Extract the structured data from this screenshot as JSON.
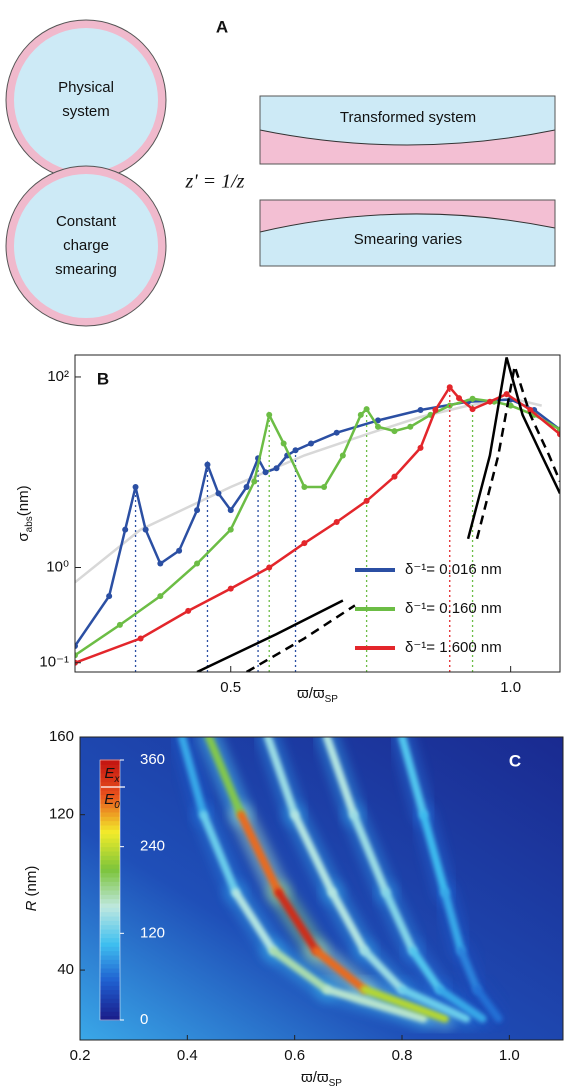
{
  "diagram": {
    "label": "A",
    "circles": [
      "Physical system",
      "Constant charge smearing"
    ],
    "equation": "z' = 1/z",
    "slabs": [
      "Transformed system",
      "Smearing varies"
    ]
  },
  "chart_data": [
    {
      "type": "line",
      "panel_label": "B",
      "ylabel": "σ",
      "ylabel_sub": "abs",
      "ylabel_unit": "(nm)",
      "xlabel": "ϖ/ϖ",
      "xlabel_sub": "SP",
      "xlog": true,
      "ylog": true,
      "xlim": [
        0.34,
        1.13
      ],
      "ylim": [
        0.08,
        170
      ],
      "xticks": [
        0.5,
        {
          "value": 1,
          "label": "1.0"
        }
      ],
      "yticks": [
        {
          "value": 0.1,
          "label": "10⁻¹"
        },
        {
          "value": 1,
          "label": "10⁰"
        },
        {
          "value": 100,
          "label": "10²"
        }
      ],
      "legend": "lower right",
      "series": [
        {
          "color": "#d8d8d8",
          "x": [
            0.34,
            0.4,
            0.5,
            0.6,
            0.7,
            0.8,
            0.9,
            1.0,
            1.08
          ],
          "values": [
            0.7,
            2.5,
            7,
            15,
            25,
            38,
            50,
            60,
            50
          ]
        },
        {
          "name": "δ⁻¹= 0.016 nm",
          "color": "#2b4fa3",
          "markers": true,
          "x": [
            0.34,
            0.37,
            0.385,
            0.395,
            0.405,
            0.42,
            0.44,
            0.46,
            0.472,
            0.485,
            0.5,
            0.52,
            0.535,
            0.545,
            0.56,
            0.575,
            0.587,
            0.61,
            0.65,
            0.72,
            0.8,
            0.9,
            1.0,
            1.06,
            1.13
          ],
          "values": [
            0.15,
            0.5,
            2.5,
            7,
            2.5,
            1.1,
            1.5,
            4,
            12,
            6,
            4,
            7,
            14,
            10,
            11,
            15,
            17,
            20,
            26,
            35,
            45,
            55,
            58,
            45,
            28
          ],
          "peaks": [
            0.395,
            0.472,
            0.535,
            0.587
          ]
        },
        {
          "name": "δ⁻¹= 0.160 nm",
          "color": "#6cbd45",
          "markers": true,
          "x": [
            0.34,
            0.38,
            0.42,
            0.46,
            0.5,
            0.53,
            0.55,
            0.57,
            0.6,
            0.63,
            0.66,
            0.69,
            0.7,
            0.72,
            0.75,
            0.78,
            0.82,
            0.86,
            0.91,
            0.96,
            1.0,
            1.06,
            1.13
          ],
          "values": [
            0.12,
            0.25,
            0.5,
            1.1,
            2.5,
            8,
            40,
            20,
            7,
            7,
            15,
            40,
            46,
            30,
            27,
            30,
            40,
            50,
            59,
            55,
            50,
            40,
            28
          ],
          "peaks": [
            0.55,
            0.7,
            0.91
          ]
        },
        {
          "name": "δ⁻¹= 1.600 nm",
          "color": "#e3262b",
          "markers": true,
          "x": [
            0.34,
            0.4,
            0.45,
            0.5,
            0.55,
            0.6,
            0.65,
            0.7,
            0.75,
            0.8,
            0.83,
            0.86,
            0.88,
            0.91,
            0.95,
            0.99,
            1.05,
            1.13
          ],
          "values": [
            0.1,
            0.18,
            0.35,
            0.6,
            1,
            1.8,
            3,
            5,
            9,
            18,
            45,
            78,
            60,
            46,
            55,
            66,
            45,
            25
          ],
          "peaks": [
            0.86
          ]
        },
        {
          "color": "#000000",
          "x": [
            0.46,
            0.56,
            0.66,
            0.67,
            0.9,
            0.95,
            0.99,
            1.03,
            1.08,
            1.13
          ],
          "values": [
            0.08,
            0.2,
            0.45,
            null,
            2,
            15,
            160,
            40,
            15,
            6
          ]
        },
        {
          "color": "#000000",
          "dashed": true,
          "x": [
            0.52,
            0.6,
            0.68,
            0.69,
            0.92,
            0.97,
            1.01,
            1.05,
            1.1,
            1.13
          ],
          "values": [
            0.08,
            0.18,
            0.4,
            null,
            2,
            15,
            130,
            40,
            15,
            8
          ]
        }
      ]
    },
    {
      "type": "heatmap",
      "panel_label": "C",
      "ylabel": "R",
      "ylabel_unit": "(nm)",
      "xlabel": "ϖ/ϖ",
      "xlabel_sub": "SP",
      "xlim": [
        0.2,
        1.1
      ],
      "ylim": [
        4,
        160
      ],
      "xticks": [
        0.2,
        0.4,
        0.6,
        0.8,
        {
          "value": 1,
          "label": "1.0"
        }
      ],
      "yticks": [
        40,
        120,
        160
      ],
      "colormap": [
        "#1a1f8c",
        "#1f5fd0",
        "#3fc0f0",
        "#bfe8e0",
        "#7cc43a",
        "#f2ec2a",
        "#e8501c",
        "#c01010"
      ],
      "colorbar": {
        "clim": [
          0,
          360
        ],
        "ticks": [
          0,
          120,
          240,
          360
        ],
        "label_num": "E",
        "label_num_sub": "x",
        "label_den": "E",
        "label_den_sub": "0"
      },
      "ridge_r": [
        160,
        120,
        80,
        50,
        30,
        15
      ],
      "ridges": [
        {
          "x": [
            0.39,
            0.43,
            0.49,
            0.56,
            0.66,
            0.84
          ],
          "values": [
            90,
            120,
            150,
            170,
            160,
            100
          ]
        },
        {
          "x": [
            0.44,
            0.5,
            0.57,
            0.64,
            0.73,
            0.88
          ],
          "values": [
            200,
            300,
            340,
            300,
            230,
            120
          ]
        },
        {
          "x": [
            0.55,
            0.6,
            0.67,
            0.73,
            0.8,
            0.92
          ],
          "values": [
            140,
            150,
            150,
            140,
            120,
            80
          ]
        },
        {
          "x": [
            0.66,
            0.71,
            0.77,
            0.82,
            0.87,
            0.95
          ],
          "values": [
            150,
            140,
            130,
            110,
            90,
            60
          ]
        },
        {
          "x": [
            0.8,
            0.84,
            0.88,
            0.91,
            0.94,
            0.98
          ],
          "values": [
            110,
            100,
            90,
            70,
            60,
            40
          ]
        }
      ]
    }
  ]
}
